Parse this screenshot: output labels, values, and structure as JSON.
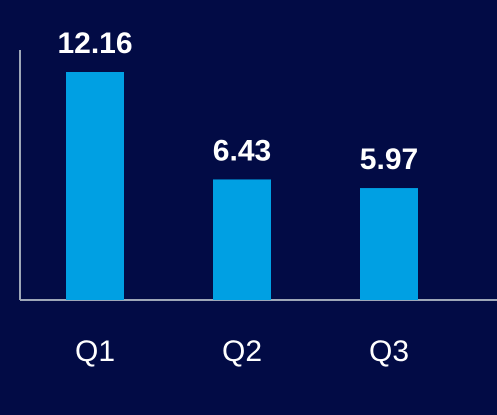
{
  "colors": {
    "background": "#020b45",
    "bar": "#00a0e3",
    "axis": "#9ea7b8",
    "text": "#ffffff"
  },
  "chart_data": {
    "type": "bar",
    "categories": [
      "Q1",
      "Q2",
      "Q3"
    ],
    "values": [
      12.16,
      6.43,
      5.97
    ],
    "data_labels": [
      "12.16",
      "6.43",
      "5.97"
    ],
    "ylim": [
      0,
      12.8
    ],
    "grid": false,
    "legend": "none"
  }
}
